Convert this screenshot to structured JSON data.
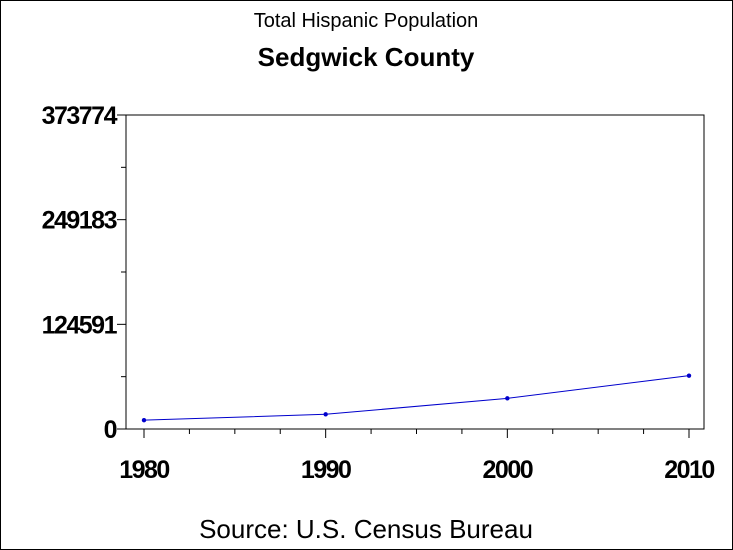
{
  "chart_data": {
    "type": "line",
    "title": "Total Hispanic Population",
    "subtitle": "Sedgwick County",
    "footnote": "Source: U.S. Census Bureau",
    "xlabel": "",
    "ylabel": "",
    "x": [
      1980,
      1990,
      2000,
      2010
    ],
    "x_tick_labels": [
      "1980",
      "1990",
      "2000",
      "2010"
    ],
    "xlim": [
      1980,
      2010
    ],
    "y_ticks": [
      0,
      124591,
      249183,
      373774
    ],
    "y_tick_labels": [
      "0",
      "124591",
      "249183",
      "373774"
    ],
    "ylim": [
      0,
      373774
    ],
    "grid": false,
    "legend": "none",
    "series": [
      {
        "values": [
          10500,
          17500,
          36500,
          63500
        ],
        "color": "#0000cc"
      }
    ],
    "frame_color": "#000000"
  }
}
